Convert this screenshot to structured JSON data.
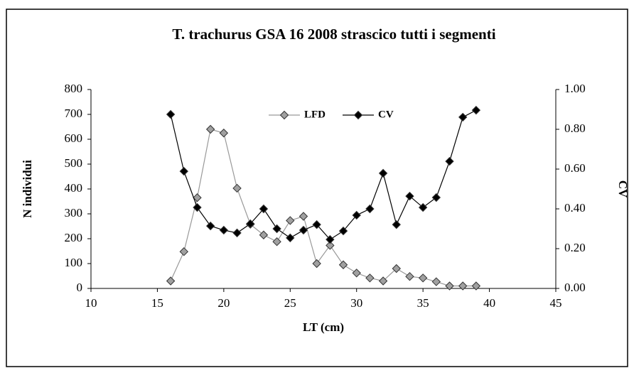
{
  "chart_data": {
    "type": "line",
    "title": "T. trachurus GSA 16 2008 strascico tutti i segmenti",
    "x_label": "LT (cm)",
    "y_label": "N individui",
    "y2_label": "CV",
    "x": [
      16,
      17,
      18,
      19,
      20,
      21,
      22,
      23,
      24,
      25,
      26,
      27,
      28,
      29,
      30,
      31,
      32,
      33,
      34,
      35,
      36,
      37,
      38,
      39
    ],
    "series": [
      {
        "name": "LFD",
        "color": "#a0a0a0",
        "values": [
          30,
          148,
          365,
          640,
          625,
          403,
          258,
          215,
          188,
          273,
          290,
          100,
          173,
          95,
          62,
          42,
          30,
          80,
          48,
          42,
          27,
          10,
          10,
          10
        ]
      },
      {
        "name": "CV",
        "color": "#000000",
        "axis": "y2",
        "values": [
          0.875,
          0.589,
          0.407,
          0.314,
          0.293,
          0.279,
          0.325,
          0.4,
          0.3,
          0.254,
          0.293,
          0.321,
          0.246,
          0.289,
          0.368,
          0.4,
          0.579,
          0.321,
          0.464,
          0.407,
          0.457,
          0.639,
          0.861,
          0.896
        ]
      }
    ],
    "xlim": [
      10,
      45
    ],
    "xticks": [
      10,
      15,
      20,
      25,
      30,
      35,
      40,
      45
    ],
    "ylim": [
      0,
      800
    ],
    "yticks": [
      0,
      100,
      200,
      300,
      400,
      500,
      600,
      700,
      800
    ],
    "y2lim": [
      0,
      1
    ],
    "y2ticks": [
      {
        "value": 0,
        "label": "0.00"
      },
      {
        "value": 0.2,
        "label": "0.20"
      },
      {
        "value": 0.4,
        "label": "0.40"
      },
      {
        "value": 0.6,
        "label": "0.60"
      },
      {
        "value": 0.8,
        "label": "0.80"
      },
      {
        "value": 1,
        "label": "1.00"
      }
    ],
    "legend": "top"
  }
}
